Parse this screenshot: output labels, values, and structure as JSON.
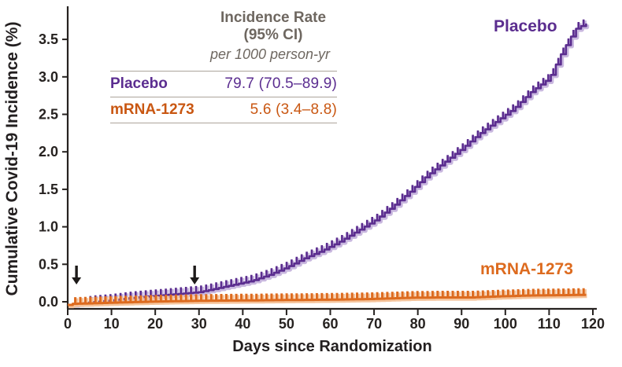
{
  "legend_table": {
    "header_line1": "Incidence Rate",
    "header_line2": "(95% CI)",
    "subheader": "per 1000 person-yr",
    "rows": [
      {
        "label": "Placebo",
        "value": "79.7 (70.5–89.9)",
        "color": "#5b2d90"
      },
      {
        "label": "mRNA-1273",
        "value": "5.6 (3.4–8.8)",
        "color": "#c95712"
      }
    ]
  },
  "chart_data": {
    "type": "line",
    "subtype": "kaplan-meier-cumulative-incidence-step",
    "title": "",
    "xlabel": "Days since Randomization",
    "ylabel": "Cumulative Covid-19 Incidence (%)",
    "xlim": [
      0,
      120
    ],
    "ylim": [
      0,
      3.9
    ],
    "grid": false,
    "x_ticks": [
      0,
      10,
      20,
      30,
      40,
      50,
      60,
      70,
      80,
      90,
      100,
      110,
      120
    ],
    "y_ticks": [
      "0.0",
      "0.5",
      "1.0",
      "1.5",
      "2.0",
      "2.5",
      "3.0",
      "3.5"
    ],
    "dose_arrow_days": [
      2,
      29
    ],
    "censor_tick_interval_days": 1.15,
    "colors": {
      "ink": "#262220",
      "arrow": "#1d1a19",
      "table_header_gray": "#6e6760",
      "rule_gray": "#aca49b"
    },
    "series": [
      {
        "name": "Placebo",
        "color": "#5b2d8f",
        "halo": "#c9b8df",
        "tick_start_day": 5,
        "stroke_width": 2.6,
        "points": [
          [
            0,
            0.0
          ],
          [
            3,
            0.02
          ],
          [
            6,
            0.04
          ],
          [
            10,
            0.06
          ],
          [
            14,
            0.09
          ],
          [
            18,
            0.11
          ],
          [
            22,
            0.13
          ],
          [
            26,
            0.15
          ],
          [
            30,
            0.17
          ],
          [
            34,
            0.22
          ],
          [
            38,
            0.27
          ],
          [
            42,
            0.32
          ],
          [
            46,
            0.4
          ],
          [
            50,
            0.5
          ],
          [
            54,
            0.62
          ],
          [
            58,
            0.72
          ],
          [
            62,
            0.84
          ],
          [
            66,
            0.98
          ],
          [
            70,
            1.12
          ],
          [
            74,
            1.3
          ],
          [
            78,
            1.5
          ],
          [
            82,
            1.72
          ],
          [
            86,
            1.9
          ],
          [
            90,
            2.08
          ],
          [
            94,
            2.28
          ],
          [
            98,
            2.45
          ],
          [
            102,
            2.62
          ],
          [
            106,
            2.85
          ],
          [
            110,
            3.02
          ],
          [
            113,
            3.38
          ],
          [
            116,
            3.68
          ],
          [
            119,
            3.77
          ]
        ]
      },
      {
        "name": "mRNA-1273",
        "color": "#dd6b1f",
        "halo": "#f5c49c",
        "tick_start_day": 1.2,
        "stroke_width": 3.0,
        "points": [
          [
            0,
            0.0
          ],
          [
            1,
            0.015
          ],
          [
            5,
            0.02
          ],
          [
            10,
            0.03
          ],
          [
            20,
            0.045
          ],
          [
            30,
            0.055
          ],
          [
            40,
            0.06
          ],
          [
            50,
            0.065
          ],
          [
            60,
            0.07
          ],
          [
            70,
            0.08
          ],
          [
            78,
            0.095
          ],
          [
            85,
            0.1
          ],
          [
            92,
            0.1
          ],
          [
            99,
            0.115
          ],
          [
            105,
            0.125
          ],
          [
            112,
            0.13
          ],
          [
            119,
            0.135
          ]
        ]
      }
    ]
  }
}
